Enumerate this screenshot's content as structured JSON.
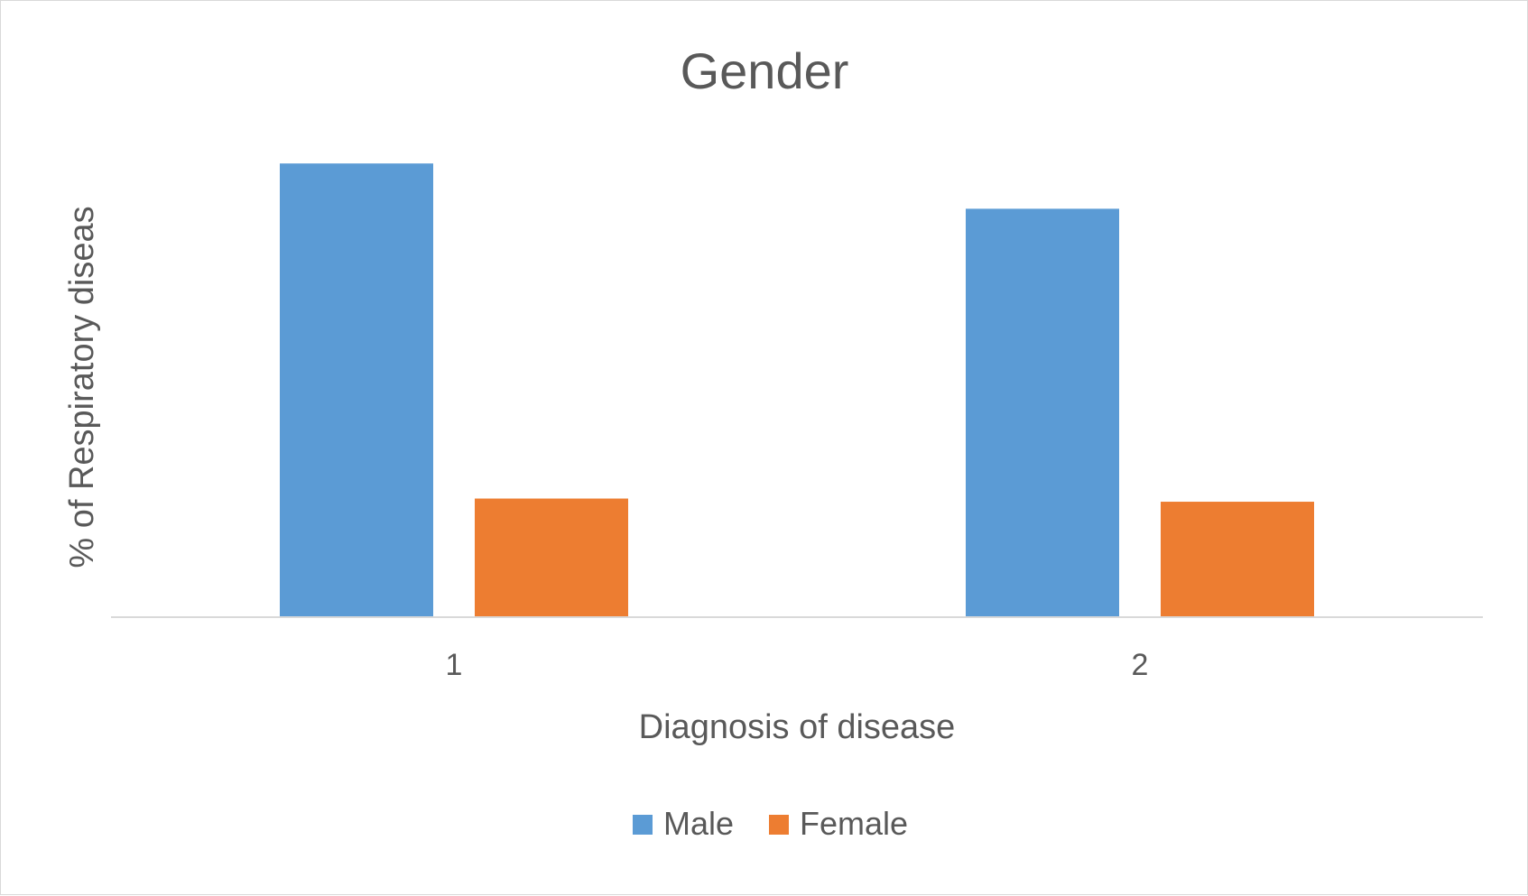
{
  "chart_data": {
    "type": "bar",
    "title": "Gender",
    "xlabel": "Diagnosis of disease",
    "ylabel": "% of Respiratory diseas",
    "categories": [
      "1",
      "2"
    ],
    "series": [
      {
        "name": "Male",
        "color": "#5B9BD5",
        "values": [
          100,
          90
        ]
      },
      {
        "name": "Female",
        "color": "#ED7D31",
        "values": [
          26,
          25.3
        ]
      }
    ],
    "ylim": [
      0,
      110
    ],
    "grid": false,
    "legend": "bottom"
  }
}
